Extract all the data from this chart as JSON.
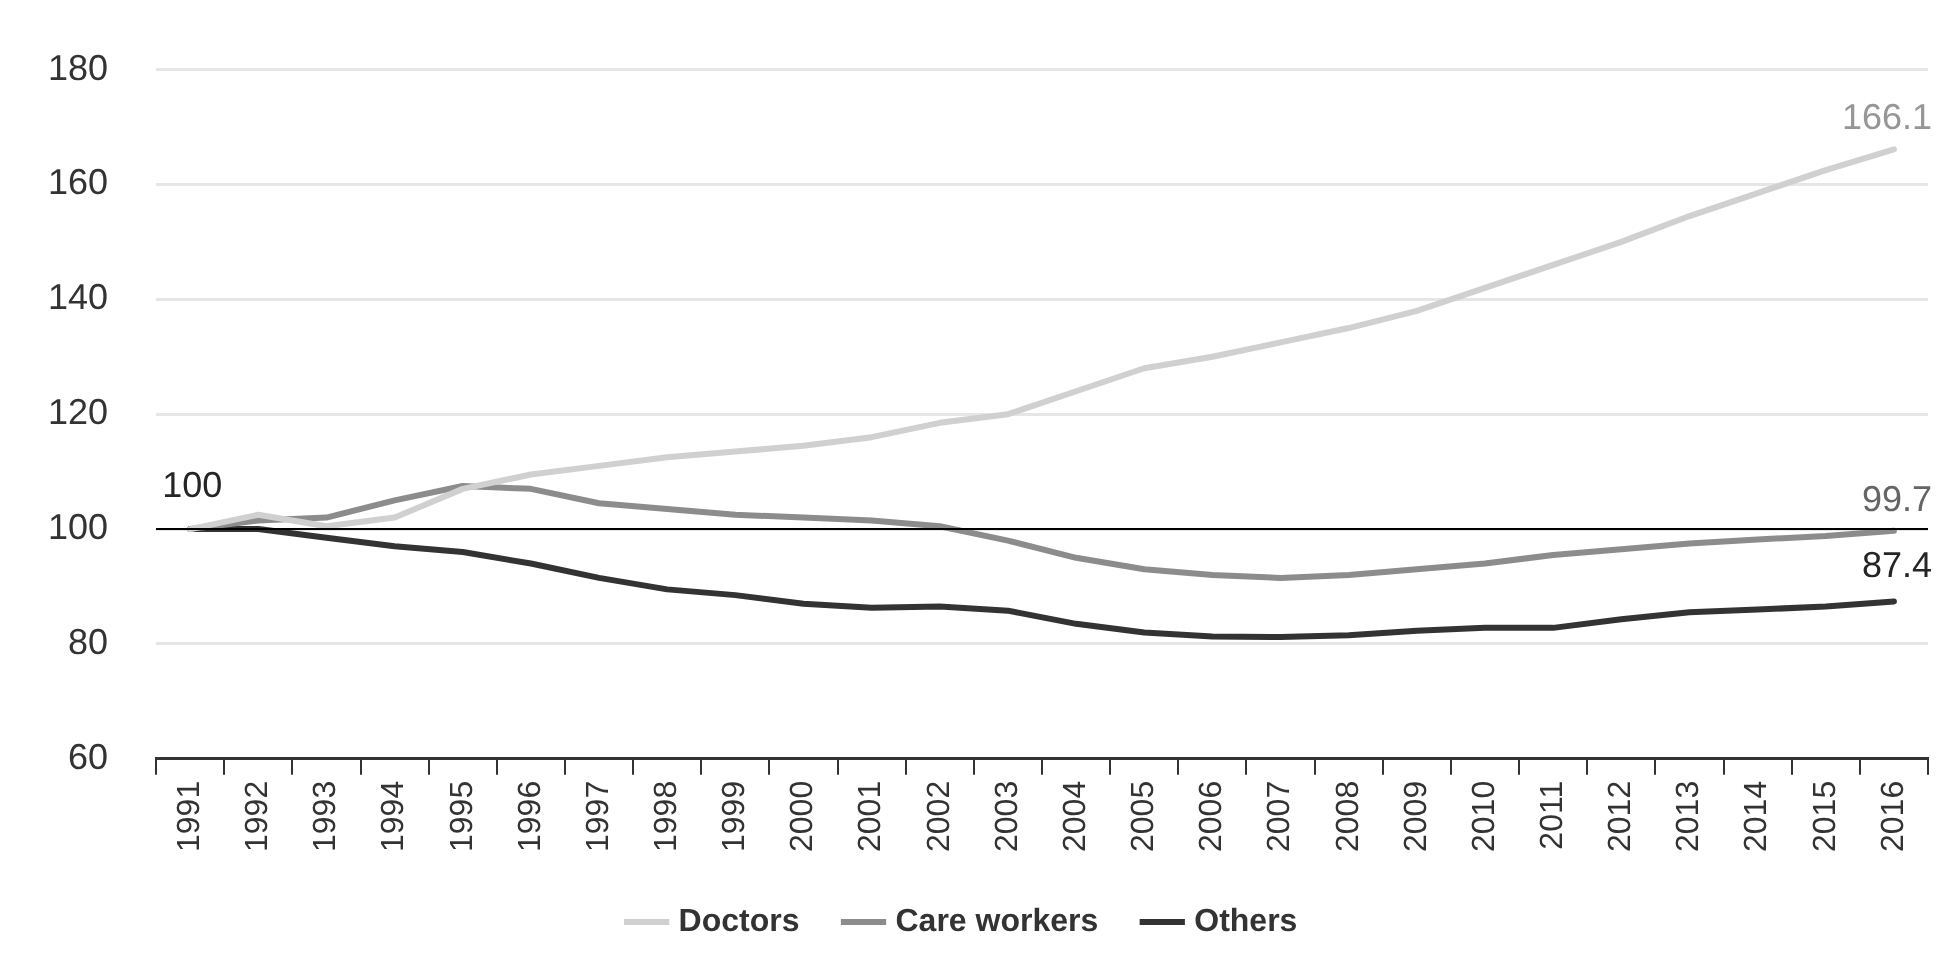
{
  "chart_data": {
    "type": "line",
    "categories": [
      "1991",
      "1992",
      "1993",
      "1994",
      "1995",
      "1996",
      "1997",
      "1998",
      "1999",
      "2000",
      "2001",
      "2002",
      "2003",
      "2004",
      "2005",
      "2006",
      "2007",
      "2008",
      "2009",
      "2010",
      "2011",
      "2012",
      "2013",
      "2014",
      "2015",
      "2016"
    ],
    "series": [
      {
        "name": "Doctors",
        "color": "#d0d0d0",
        "values": [
          100,
          102.5,
          100.5,
          102,
          107,
          109.5,
          111,
          112.5,
          113.5,
          114.5,
          116,
          118.5,
          120,
          124,
          128,
          130,
          132.5,
          135,
          138,
          142,
          146,
          150,
          154.5,
          158.5,
          162.5,
          166.1
        ],
        "value_labels": [
          null,
          null,
          null,
          null,
          null,
          null,
          null,
          null,
          null,
          null,
          null,
          null,
          null,
          null,
          null,
          null,
          null,
          null,
          null,
          null,
          null,
          null,
          null,
          null,
          null,
          "166.1"
        ]
      },
      {
        "name": "Care workers",
        "color": "#8c8c8c",
        "values": [
          100,
          101.5,
          102,
          105,
          107.5,
          107,
          104.5,
          103.5,
          102.5,
          102,
          101.5,
          100.5,
          98,
          95,
          93,
          92,
          91.5,
          92,
          93,
          94,
          95.5,
          96.5,
          97.5,
          98.2,
          98.8,
          99.7
        ],
        "value_labels": [
          null,
          null,
          null,
          null,
          null,
          null,
          null,
          null,
          null,
          null,
          null,
          null,
          null,
          null,
          null,
          null,
          null,
          null,
          null,
          null,
          null,
          null,
          null,
          null,
          null,
          "99.7"
        ]
      },
      {
        "name": "Others",
        "color": "#333333",
        "values": [
          100,
          100,
          98.5,
          97,
          96,
          94,
          91.5,
          89.5,
          88.5,
          87,
          86.3,
          86.5,
          85.8,
          83.5,
          82,
          81.3,
          81.2,
          81.5,
          82.3,
          82.8,
          82.8,
          84.3,
          85.5,
          86,
          86.5,
          87.4
        ],
        "value_labels": [
          "100",
          null,
          null,
          null,
          null,
          null,
          null,
          null,
          null,
          null,
          null,
          null,
          null,
          null,
          null,
          null,
          null,
          null,
          null,
          null,
          null,
          null,
          null,
          null,
          null,
          "87.4"
        ]
      }
    ],
    "ylim": [
      60,
      180
    ],
    "yticks": [
      60,
      80,
      100,
      120,
      140,
      160,
      180
    ],
    "grid": "y",
    "legend": "bottom",
    "marker": "none",
    "line_style": "solid",
    "ref_lines": [
      {
        "axis": "y",
        "value": 100,
        "color": "#000000"
      }
    ]
  }
}
